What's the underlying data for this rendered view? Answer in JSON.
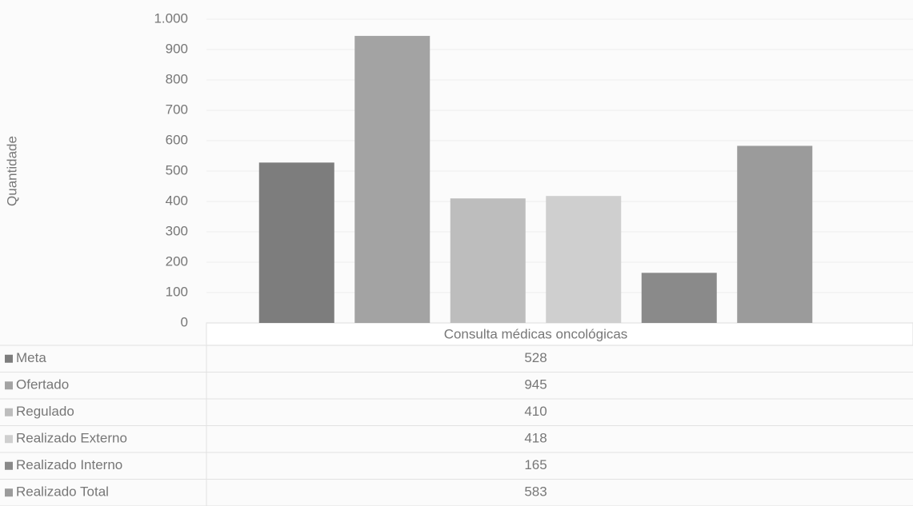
{
  "chart_data": {
    "type": "bar",
    "y_label": "Quantidade",
    "categories": [
      "Consulta médicas oncológicas"
    ],
    "series": [
      {
        "name": "Meta",
        "color": "#7d7d7d",
        "values": [
          528
        ]
      },
      {
        "name": "Ofertado",
        "color": "#a3a3a3",
        "values": [
          945
        ]
      },
      {
        "name": "Regulado",
        "color": "#bdbdbd",
        "values": [
          410
        ]
      },
      {
        "name": "Realizado Externo",
        "color": "#cfcfcf",
        "values": [
          418
        ]
      },
      {
        "name": "Realizado Interno",
        "color": "#8a8a8a",
        "values": [
          165
        ]
      },
      {
        "name": "Realizado Total",
        "color": "#9b9b9b",
        "values": [
          583
        ]
      }
    ],
    "ylim": [
      0,
      1000
    ],
    "yticks": [
      0,
      100,
      200,
      300,
      400,
      500,
      600,
      700,
      800,
      900,
      {
        "value": 1000,
        "label": "1.000"
      }
    ],
    "grid": true
  }
}
